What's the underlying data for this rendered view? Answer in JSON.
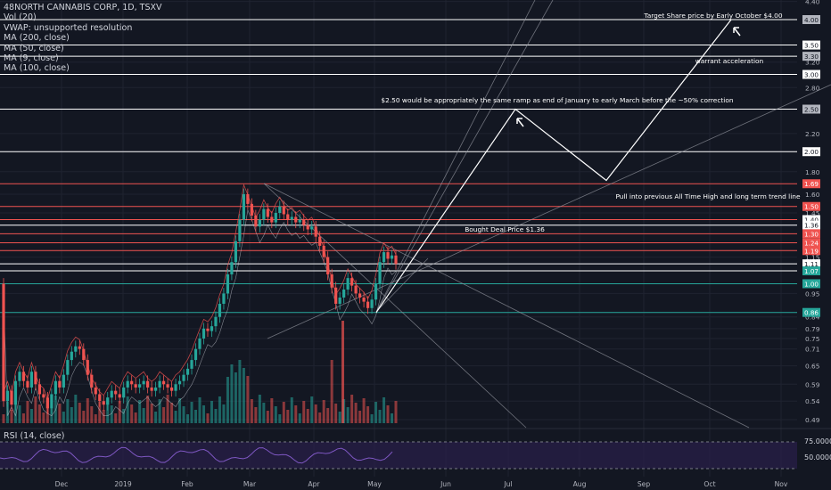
{
  "legend": {
    "symbol": "48NORTH CANNABIS CORP, 1D, TSXV",
    "vol": "Vol (20)",
    "vwap": "VWAP: unsupported resolution",
    "ma200": "MA (200, close)",
    "ma50": "MA (50, close)",
    "ma9": "MA (9, close)",
    "ma100": "MA (100, close)"
  },
  "rsi": {
    "label": "RSI (14, close)",
    "levels": [
      "75.0000",
      "50.0000"
    ]
  },
  "colors": {
    "background": "#131722",
    "up": "#26a69a",
    "down": "#ef5350",
    "grid": "#1f2330",
    "line": "#ffffff"
  },
  "chart_data": {
    "type": "candlestick",
    "scale": "log",
    "ylim": [
      0.49,
      4.0
    ],
    "x_ticks": [
      "Dec",
      "2019",
      "Feb",
      "Mar",
      "Apr",
      "May",
      "Jun",
      "Jul",
      "Aug",
      "Sep",
      "Oct",
      "Nov"
    ],
    "y_ticks": [
      "4.40",
      "4.00",
      "3.50",
      "3.20",
      "3.00",
      "2.80",
      "2.50",
      "2.20",
      "2.00",
      "1.80",
      "1.60",
      "1.45",
      "1.36",
      "1.30",
      "1.24",
      "1.19",
      "1.15",
      "1.11",
      "1.07",
      "1.00",
      "0.95",
      "0.86",
      "0.84",
      "0.79",
      "0.75",
      "0.71",
      "0.65",
      "0.59",
      "0.54",
      "0.49"
    ],
    "price_badges": [
      {
        "value": "4.00",
        "color": "#b2b5be"
      },
      {
        "value": "3.50",
        "color": "#ffffff"
      },
      {
        "value": "3.30",
        "color": "#b2b5be"
      },
      {
        "value": "3.00",
        "color": "#ffffff"
      },
      {
        "value": "2.50",
        "color": "#b2b5be"
      },
      {
        "value": "2.00",
        "color": "#ffffff"
      },
      {
        "value": "1.69",
        "color": "#ef5350"
      },
      {
        "value": "1.50",
        "color": "#ef5350"
      },
      {
        "value": "1.40",
        "color": "#ffffff"
      },
      {
        "value": "1.36",
        "color": "#ffffff"
      },
      {
        "value": "1.30",
        "color": "#ef5350"
      },
      {
        "value": "1.24",
        "color": "#ef5350"
      },
      {
        "value": "1.19",
        "color": "#ef5350"
      },
      {
        "value": "1.11",
        "color": "#ffffff"
      },
      {
        "value": "1.07",
        "color": "#26a69a"
      },
      {
        "value": "1.00",
        "color": "#26a69a"
      },
      {
        "value": "0.86",
        "color": "#26a69a"
      }
    ],
    "horizontal_levels": [
      {
        "price": 4.0,
        "color": "#ffffff"
      },
      {
        "price": 3.5,
        "color": "#ffffff"
      },
      {
        "price": 3.3,
        "color": "#ffffff"
      },
      {
        "price": 3.0,
        "color": "#ffffff"
      },
      {
        "price": 2.5,
        "color": "#ffffff"
      },
      {
        "price": 2.0,
        "color": "#ffffff"
      },
      {
        "price": 1.69,
        "color": "#ef5350"
      },
      {
        "price": 1.5,
        "color": "#ef5350"
      },
      {
        "price": 1.4,
        "color": "#ef5350"
      },
      {
        "price": 1.36,
        "color": "#ffffff"
      },
      {
        "price": 1.3,
        "color": "#ef5350"
      },
      {
        "price": 1.24,
        "color": "#ef5350"
      },
      {
        "price": 1.19,
        "color": "#ef5350"
      },
      {
        "price": 1.11,
        "color": "#ffffff"
      },
      {
        "price": 1.07,
        "color": "#ffffff"
      },
      {
        "price": 1.0,
        "color": "#26a69a"
      },
      {
        "price": 0.86,
        "color": "#26a69a"
      }
    ],
    "annotations": [
      "Target Share price by Early October $4.00",
      "warrant acceleration",
      "$2.50 would be appropriately the same ramp as end of January to early March before the ~50% correction",
      "Pull into previous All Time High and long term trend line",
      "Bought Deal Price $1.36"
    ],
    "projection_path": [
      {
        "date": "2019-05-01",
        "price": 0.86
      },
      {
        "date": "2019-07-01",
        "price": 2.5
      },
      {
        "date": "2019-08-12",
        "price": 1.72
      },
      {
        "date": "2019-10-05",
        "price": 4.0
      }
    ],
    "candles": [
      [
        1.0,
        0.54
      ],
      [
        0.54,
        0.57
      ],
      [
        0.57,
        0.53
      ],
      [
        0.53,
        0.6
      ],
      [
        0.6,
        0.63
      ],
      [
        0.63,
        0.6
      ],
      [
        0.6,
        0.58
      ],
      [
        0.58,
        0.63
      ],
      [
        0.63,
        0.59
      ],
      [
        0.59,
        0.56
      ],
      [
        0.56,
        0.55
      ],
      [
        0.55,
        0.52
      ],
      [
        0.52,
        0.56
      ],
      [
        0.56,
        0.6
      ],
      [
        0.6,
        0.58
      ],
      [
        0.58,
        0.62
      ],
      [
        0.62,
        0.67
      ],
      [
        0.67,
        0.7
      ],
      [
        0.7,
        0.72
      ],
      [
        0.72,
        0.71
      ],
      [
        0.71,
        0.67
      ],
      [
        0.67,
        0.62
      ],
      [
        0.62,
        0.58
      ],
      [
        0.58,
        0.56
      ],
      [
        0.56,
        0.54
      ],
      [
        0.54,
        0.53
      ],
      [
        0.53,
        0.55
      ],
      [
        0.55,
        0.57
      ],
      [
        0.57,
        0.56
      ],
      [
        0.56,
        0.55
      ],
      [
        0.55,
        0.58
      ],
      [
        0.58,
        0.6
      ],
      [
        0.6,
        0.59
      ],
      [
        0.59,
        0.58
      ],
      [
        0.58,
        0.59
      ],
      [
        0.59,
        0.6
      ],
      [
        0.6,
        0.58
      ],
      [
        0.58,
        0.57
      ],
      [
        0.57,
        0.58
      ],
      [
        0.58,
        0.6
      ],
      [
        0.6,
        0.59
      ],
      [
        0.59,
        0.58
      ],
      [
        0.58,
        0.57
      ],
      [
        0.57,
        0.59
      ],
      [
        0.59,
        0.6
      ],
      [
        0.6,
        0.62
      ],
      [
        0.62,
        0.64
      ],
      [
        0.64,
        0.67
      ],
      [
        0.67,
        0.71
      ],
      [
        0.71,
        0.75
      ],
      [
        0.75,
        0.79
      ],
      [
        0.79,
        0.78
      ],
      [
        0.78,
        0.8
      ],
      [
        0.8,
        0.84
      ],
      [
        0.84,
        0.9
      ],
      [
        0.9,
        0.95
      ],
      [
        0.95,
        1.05
      ],
      [
        1.05,
        1.12
      ],
      [
        1.12,
        1.25
      ],
      [
        1.25,
        1.4
      ],
      [
        1.4,
        1.6
      ],
      [
        1.6,
        1.52
      ],
      [
        1.52,
        1.43
      ],
      [
        1.43,
        1.35
      ],
      [
        1.35,
        1.4
      ],
      [
        1.4,
        1.48
      ],
      [
        1.48,
        1.42
      ],
      [
        1.42,
        1.38
      ],
      [
        1.38,
        1.45
      ],
      [
        1.45,
        1.5
      ],
      [
        1.5,
        1.44
      ],
      [
        1.44,
        1.4
      ],
      [
        1.4,
        1.42
      ],
      [
        1.42,
        1.38
      ],
      [
        1.38,
        1.4
      ],
      [
        1.4,
        1.36
      ],
      [
        1.36,
        1.33
      ],
      [
        1.33,
        1.35
      ],
      [
        1.35,
        1.28
      ],
      [
        1.28,
        1.22
      ],
      [
        1.22,
        1.15
      ],
      [
        1.15,
        1.05
      ],
      [
        1.05,
        0.98
      ],
      [
        0.98,
        0.9
      ],
      [
        0.9,
        0.93
      ],
      [
        0.93,
        0.97
      ],
      [
        0.97,
        1.03
      ],
      [
        1.03,
        0.99
      ],
      [
        0.99,
        0.95
      ],
      [
        0.95,
        0.93
      ],
      [
        0.93,
        0.91
      ],
      [
        0.91,
        0.88
      ],
      [
        0.88,
        0.92
      ],
      [
        0.92,
        1.0
      ],
      [
        1.0,
        1.12
      ],
      [
        1.12,
        1.18
      ],
      [
        1.18,
        1.14
      ],
      [
        1.14,
        1.16
      ],
      [
        1.16,
        1.11
      ]
    ]
  }
}
